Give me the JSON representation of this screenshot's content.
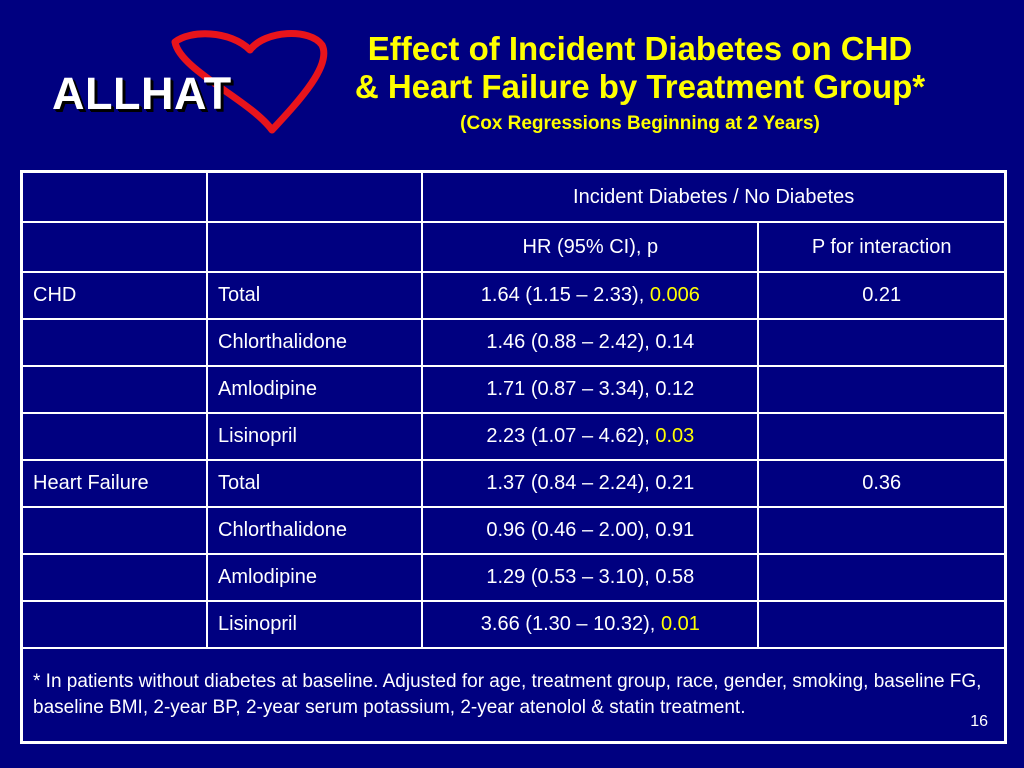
{
  "logo": {
    "text": "ALLHAT",
    "heart_color": "#e8141c"
  },
  "title": {
    "line1": "Effect of Incident Diabetes on CHD",
    "line2": "& Heart Failure by Treatment Group*",
    "subtitle": "(Cox Regressions Beginning at 2 Years)"
  },
  "table": {
    "header_group": "Incident Diabetes / No Diabetes",
    "col_hr": "HR (95% CI), p",
    "col_interaction": "P for interaction",
    "rows": [
      {
        "outcome": "CHD",
        "group": "Total",
        "hr": "1.64 (1.15 – 2.33), ",
        "p": "0.006",
        "interaction": "0.21"
      },
      {
        "outcome": "",
        "group": "Chlorthalidone",
        "hr": "1.46 (0.88 – 2.42), ",
        "p": "0.14",
        "interaction": ""
      },
      {
        "outcome": "",
        "group": "Amlodipine",
        "hr": "1.71 (0.87 – 3.34), ",
        "p": "0.12",
        "interaction": ""
      },
      {
        "outcome": "",
        "group": "Lisinopril",
        "hr": "2.23 (1.07 – 4.62), ",
        "p": "0.03",
        "interaction": ""
      },
      {
        "outcome": "Heart Failure",
        "group": "Total",
        "hr": "1.37 (0.84 – 2.24), ",
        "p": "0.21",
        "interaction": "0.36"
      },
      {
        "outcome": "",
        "group": "Chlorthalidone",
        "hr": "0.96 (0.46 – 2.00), ",
        "p": "0.91",
        "interaction": ""
      },
      {
        "outcome": "",
        "group": "Amlodipine",
        "hr": "1.29 (0.53 – 3.10), ",
        "p": "0.58",
        "interaction": ""
      },
      {
        "outcome": "",
        "group": "Lisinopril",
        "hr": "3.66 (1.30 – 10.32), ",
        "p": "0.01",
        "interaction": ""
      }
    ],
    "footnote": "* In patients without diabetes at baseline. Adjusted for age, treatment group, race, gender, smoking, baseline FG, baseline BMI, 2-year BP, 2-year serum potassium, 2-year atenolol & statin treatment."
  },
  "page_number": "16",
  "colors": {
    "background": "#000080",
    "title": "#ffff00",
    "highlight": "#ffff00",
    "text": "#ffffff"
  }
}
